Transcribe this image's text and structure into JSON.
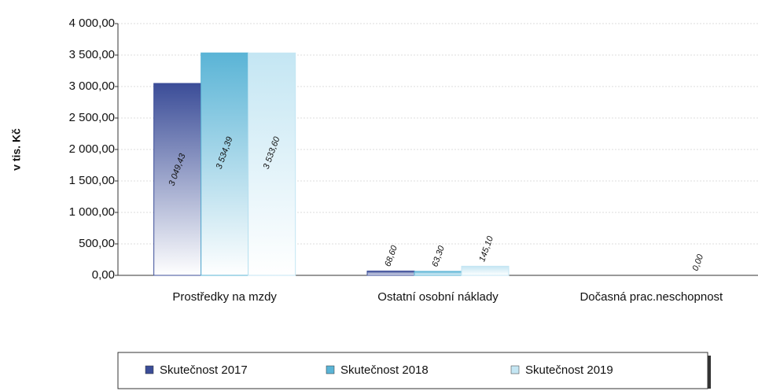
{
  "chart_data": {
    "type": "bar",
    "y_axis_label": "v tis. Kč",
    "categories": [
      "Prostředky na mzdy",
      "Ostatní osobní náklady",
      "Dočasná prac.neschopnost"
    ],
    "series": [
      {
        "name": "Skutečnost 2017",
        "color": "#3b4d98",
        "values": [
          3049.43,
          68.6,
          null
        ],
        "value_labels": [
          "3 049,43",
          "68,60",
          null
        ]
      },
      {
        "name": "Skutečnost 2018",
        "color": "#5ab4d6",
        "values": [
          3534.39,
          63.3,
          null
        ],
        "value_labels": [
          "3 534,39",
          "63,30",
          null
        ]
      },
      {
        "name": "Skutečnost 2019",
        "color": "#c4e6f3",
        "values": [
          3533.6,
          145.1,
          0.0
        ],
        "value_labels": [
          "3 533,60",
          "145,10",
          "0,00"
        ]
      }
    ],
    "ylim": [
      0,
      4000
    ],
    "yticks": [
      {
        "value": 0,
        "label": "0,00"
      },
      {
        "value": 500,
        "label": "500,00"
      },
      {
        "value": 1000,
        "label": "1 000,00"
      },
      {
        "value": 1500,
        "label": "1 500,00"
      },
      {
        "value": 2000,
        "label": "2 000,00"
      },
      {
        "value": 2500,
        "label": "2 500,00"
      },
      {
        "value": 3000,
        "label": "3 000,00"
      },
      {
        "value": 3500,
        "label": "3 500,00"
      },
      {
        "value": 4000,
        "label": "4 000,00"
      }
    ],
    "grid": true
  }
}
